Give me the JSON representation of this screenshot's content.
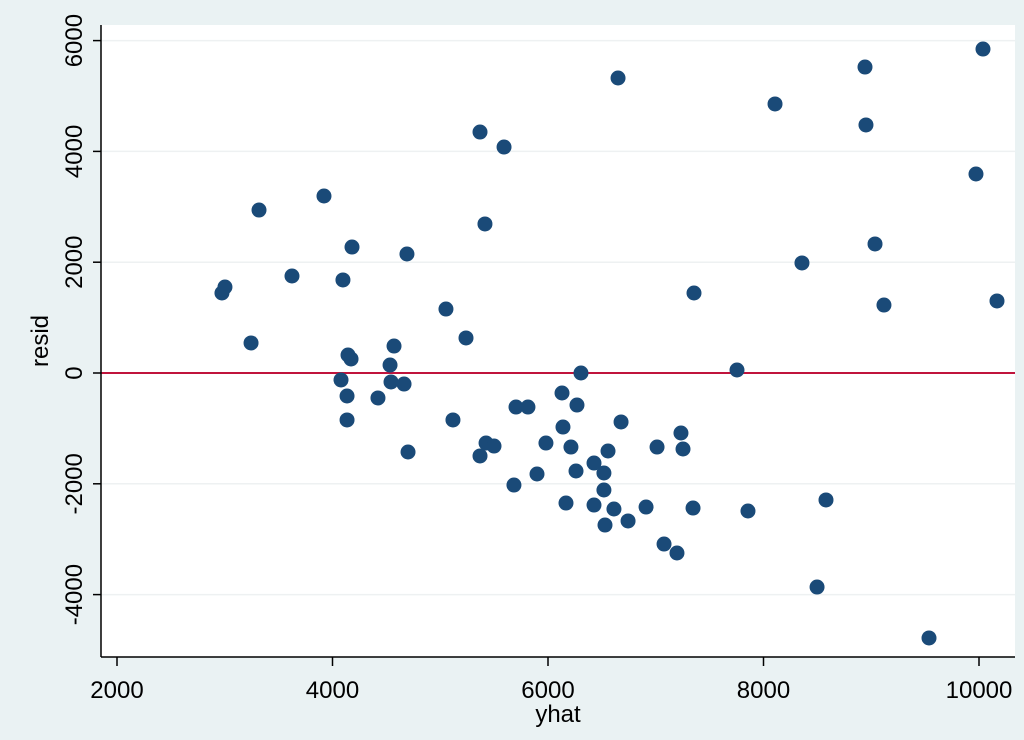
{
  "chart_data": {
    "type": "scatter",
    "title": "",
    "xlabel": "yhat",
    "ylabel": "resid",
    "xlim": [
      1820,
      10330
    ],
    "ylim": [
      -5180,
      6270
    ],
    "xticks": [
      2000,
      4000,
      6000,
      8000,
      10000
    ],
    "yticks": [
      -4000,
      -2000,
      0,
      2000,
      4000,
      6000
    ],
    "xtick_labels": [
      "2000",
      "4000",
      "6000",
      "8000",
      "10000"
    ],
    "ytick_labels": [
      "-4000",
      "-2000",
      "0",
      "2000",
      "4000",
      "6000"
    ],
    "grid": {
      "y": true,
      "x": false
    },
    "reference_line": {
      "y": 0,
      "color": "#c0143c"
    },
    "marker_color": "#1a4a78",
    "background_color": "#eaf2f3",
    "plot_background": "#ffffff",
    "legend": null,
    "series": [
      {
        "name": "resid",
        "points": [
          [
            2974,
            1444
          ],
          [
            3002,
            1552
          ],
          [
            3244,
            542
          ],
          [
            3318,
            2942
          ],
          [
            3624,
            1751
          ],
          [
            3921,
            3195
          ],
          [
            4097,
            1679
          ],
          [
            4181,
            2274
          ],
          [
            4079,
            -126
          ],
          [
            4144,
            325
          ],
          [
            4172,
            253
          ],
          [
            4135,
            -415
          ],
          [
            4135,
            -848
          ],
          [
            4422,
            -451
          ],
          [
            4534,
            144
          ],
          [
            4571,
            487
          ],
          [
            4543,
            -162
          ],
          [
            4664,
            -199
          ],
          [
            4691,
            2148
          ],
          [
            4701,
            -1426
          ],
          [
            5053,
            1155
          ],
          [
            5118,
            -848
          ],
          [
            5239,
            632
          ],
          [
            5369,
            4350
          ],
          [
            5369,
            -1498
          ],
          [
            5415,
            2690
          ],
          [
            5425,
            -1264
          ],
          [
            5499,
            -1318
          ],
          [
            5592,
            4079
          ],
          [
            5684,
            -2022
          ],
          [
            5703,
            -614
          ],
          [
            5814,
            -614
          ],
          [
            5898,
            -1823
          ],
          [
            5981,
            -1264
          ],
          [
            6130,
            -361
          ],
          [
            6139,
            -975
          ],
          [
            6167,
            -2347
          ],
          [
            6213,
            -1336
          ],
          [
            6260,
            -1769
          ],
          [
            6269,
            -578
          ],
          [
            6306,
            0
          ],
          [
            6427,
            -1625
          ],
          [
            6427,
            -2383
          ],
          [
            6519,
            -1805
          ],
          [
            6519,
            -2112
          ],
          [
            6529,
            -2744
          ],
          [
            6557,
            -1408
          ],
          [
            6612,
            -2455
          ],
          [
            6650,
            5325
          ],
          [
            6678,
            -884
          ],
          [
            6743,
            -2671
          ],
          [
            6910,
            -2419
          ],
          [
            7012,
            -1336
          ],
          [
            7077,
            -3087
          ],
          [
            7197,
            -3249
          ],
          [
            7234,
            -1083
          ],
          [
            7253,
            -1372
          ],
          [
            7355,
            1444
          ],
          [
            7346,
            -2437
          ],
          [
            7754,
            54
          ],
          [
            7856,
            -2491
          ],
          [
            8107,
            4856
          ],
          [
            8357,
            1986
          ],
          [
            8497,
            -3863
          ],
          [
            8580,
            -2292
          ],
          [
            8942,
            5523
          ],
          [
            8951,
            4477
          ],
          [
            9035,
            2329
          ],
          [
            9118,
            1227
          ],
          [
            9536,
            -4783
          ],
          [
            9972,
            3592
          ],
          [
            10037,
            5848
          ],
          [
            10167,
            1300
          ]
        ]
      }
    ]
  }
}
